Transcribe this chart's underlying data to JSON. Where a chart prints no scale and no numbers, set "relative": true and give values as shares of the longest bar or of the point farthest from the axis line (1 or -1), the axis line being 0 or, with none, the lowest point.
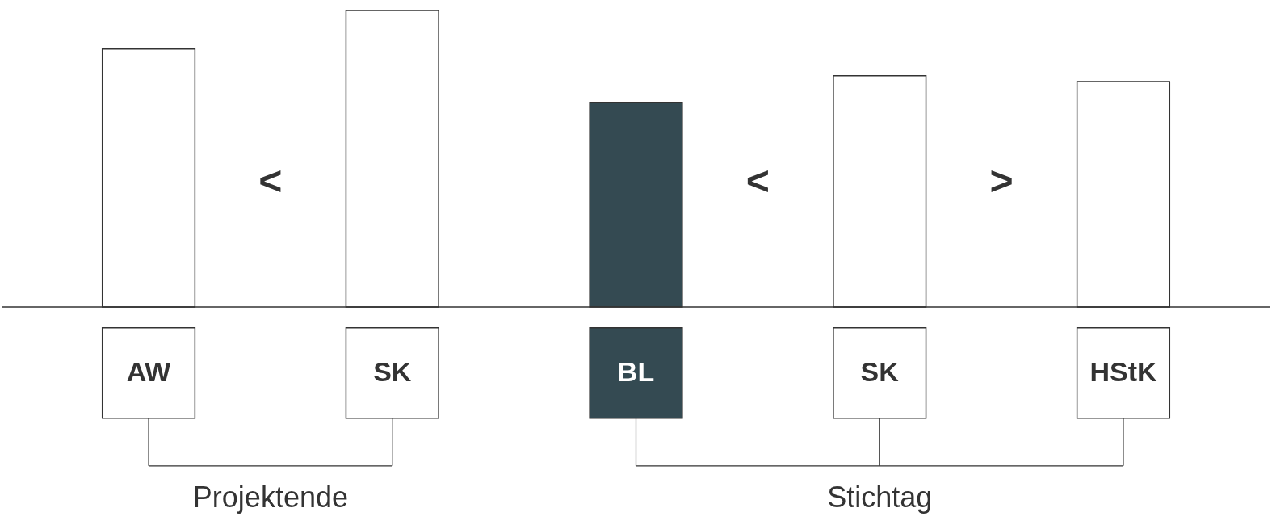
{
  "chart_data": {
    "type": "bar",
    "relative": true,
    "categories": [
      "AW",
      "SK",
      "BL",
      "SK",
      "HStK"
    ],
    "values": [
      0.87,
      1,
      0.69,
      0.78,
      0.76
    ],
    "colors": [
      "#ffffff",
      "#ffffff",
      "#344a52",
      "#ffffff",
      "#ffffff"
    ],
    "annotations": [
      "<",
      "<",
      ">",
      "Projektende",
      "Stichtag"
    ]
  }
}
